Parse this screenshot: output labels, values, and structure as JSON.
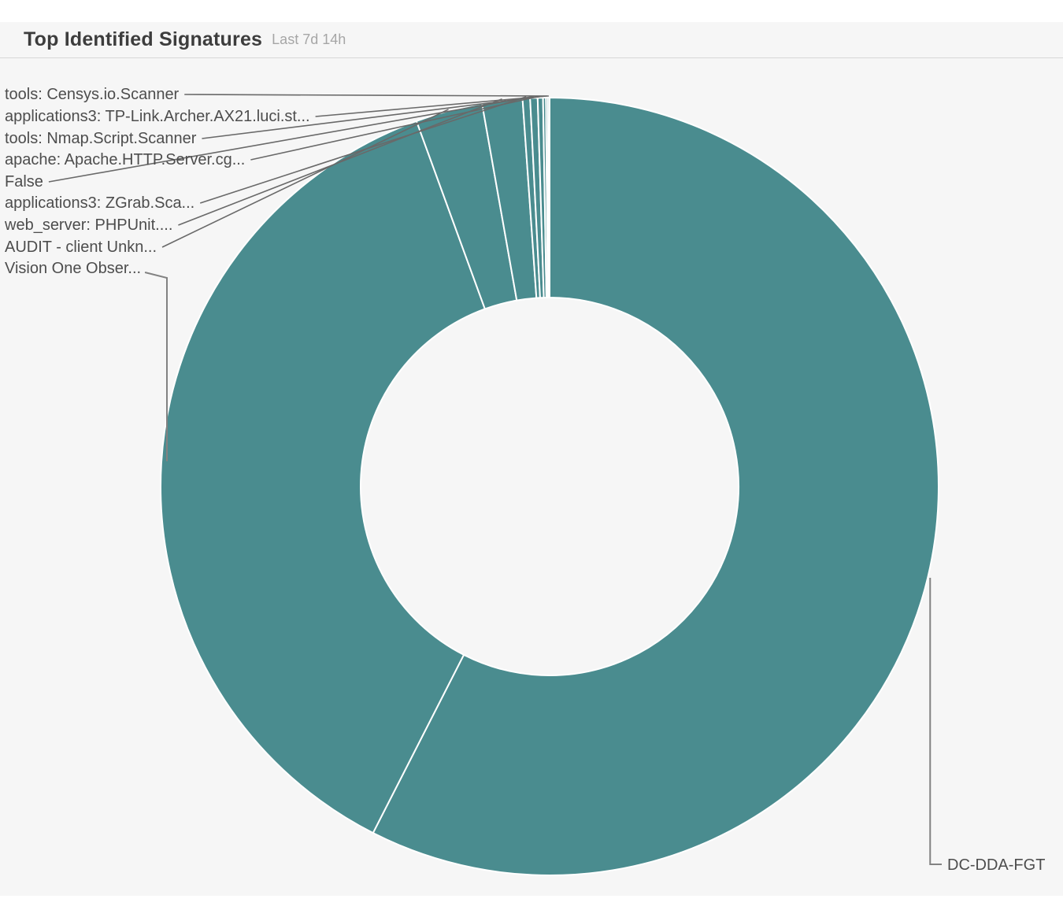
{
  "header": {
    "title": "Top Identified Signatures",
    "subtitle": "Last 7d 14h"
  },
  "chart_data": {
    "type": "pie",
    "title": "Top Identified Signatures",
    "period": "Last 7d 14h",
    "donut": true,
    "hole_ratio": 0.49,
    "start_angle_deg": 0,
    "direction": "clockwise",
    "unit": "percent_of_total",
    "legend": false,
    "slices": [
      {
        "label": "DC-DDA-FGT",
        "value": 57.5
      },
      {
        "label": "Vision One Obser...",
        "value": 36.94
      },
      {
        "label": "AUDIT - client Unkn...",
        "value": 2.78
      },
      {
        "label": "web_server: PHPUnit....",
        "value": 1.67
      },
      {
        "label": "applications3: ZGrab.Sca...",
        "value": 0.31
      },
      {
        "label": "False",
        "value": 0.31
      },
      {
        "label": "apache: Apache.HTTP.Server.cg...",
        "value": 0.22
      },
      {
        "label": "tools: Nmap.Script.Scanner",
        "value": 0.12
      },
      {
        "label": "applications3: TP-Link.Archer.AX21.luci.st...",
        "value": 0.08
      },
      {
        "label": "tools: Censys.io.Scanner",
        "value": 0.07
      }
    ],
    "colors": {
      "slice_fill": "#4a8c8f",
      "slice_border": "#ffffff",
      "leader_line": "#696969",
      "leader_line_long": "#828282",
      "label_text": "#4d4d4d"
    }
  }
}
